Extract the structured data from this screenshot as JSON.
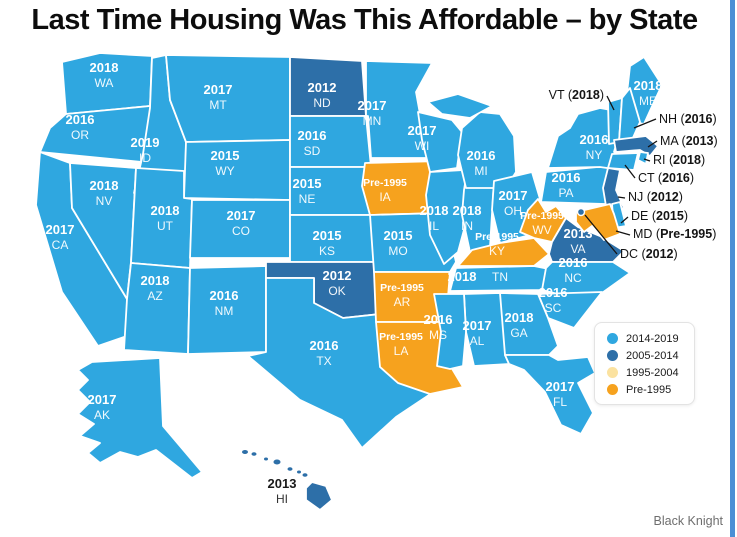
{
  "title": "Last Time Housing Was This Affordable – by State",
  "credit": "Black Knight",
  "colors": {
    "light": "#2fa7e0",
    "dark": "#2d6fa8",
    "pale": "#fbe2a0",
    "orange": "#f6a21e"
  },
  "legend": {
    "items": [
      {
        "label": "2014-2019",
        "color_key": "light"
      },
      {
        "label": "2005-2014",
        "color_key": "dark"
      },
      {
        "label": "1995-2004",
        "color_key": "pale"
      },
      {
        "label": "Pre-1995",
        "color_key": "orange"
      }
    ]
  },
  "states": [
    {
      "abbr": "WA",
      "year": "2018",
      "category": "light",
      "label": "stacked"
    },
    {
      "abbr": "OR",
      "year": "2016",
      "category": "light",
      "label": "stacked"
    },
    {
      "abbr": "CA",
      "year": "2017",
      "category": "light",
      "label": "stacked"
    },
    {
      "abbr": "NV",
      "year": "2018",
      "category": "light",
      "label": "stacked"
    },
    {
      "abbr": "ID",
      "year": "2019",
      "category": "light",
      "label": "stacked"
    },
    {
      "abbr": "MT",
      "year": "2017",
      "category": "light",
      "label": "stacked"
    },
    {
      "abbr": "WY",
      "year": "2015",
      "category": "light",
      "label": "stacked"
    },
    {
      "abbr": "UT",
      "year": "2018",
      "category": "light",
      "label": "stacked"
    },
    {
      "abbr": "CO",
      "year": "2017",
      "category": "light",
      "label": "stacked"
    },
    {
      "abbr": "AZ",
      "year": "2018",
      "category": "light",
      "label": "stacked"
    },
    {
      "abbr": "NM",
      "year": "2016",
      "category": "light",
      "label": "stacked"
    },
    {
      "abbr": "ND",
      "year": "2012",
      "category": "dark",
      "label": "stacked"
    },
    {
      "abbr": "SD",
      "year": "2016",
      "category": "light",
      "label": "stacked"
    },
    {
      "abbr": "NE",
      "year": "2015",
      "category": "light",
      "label": "stacked"
    },
    {
      "abbr": "KS",
      "year": "2015",
      "category": "light",
      "label": "stacked"
    },
    {
      "abbr": "OK",
      "year": "2012",
      "category": "dark",
      "label": "stacked"
    },
    {
      "abbr": "TX",
      "year": "2016",
      "category": "light",
      "label": "stacked"
    },
    {
      "abbr": "MN",
      "year": "2017",
      "category": "light",
      "label": "stacked"
    },
    {
      "abbr": "IA",
      "year": "Pre-1995",
      "category": "orange",
      "label": "stacked"
    },
    {
      "abbr": "MO",
      "year": "2015",
      "category": "light",
      "label": "stacked"
    },
    {
      "abbr": "AR",
      "year": "Pre-1995",
      "category": "orange",
      "label": "stacked"
    },
    {
      "abbr": "LA",
      "year": "Pre-1995",
      "category": "orange",
      "label": "stacked"
    },
    {
      "abbr": "WI",
      "year": "2017",
      "category": "light",
      "label": "stacked"
    },
    {
      "abbr": "IL",
      "year": "2018",
      "category": "light",
      "label": "stacked"
    },
    {
      "abbr": "IN",
      "year": "2018",
      "category": "light",
      "label": "stacked"
    },
    {
      "abbr": "MI",
      "year": "2016",
      "category": "light",
      "label": "stacked"
    },
    {
      "abbr": "OH",
      "year": "2017",
      "category": "light",
      "label": "stacked"
    },
    {
      "abbr": "KY",
      "year": "Pre-1995",
      "category": "orange",
      "label": "stacked"
    },
    {
      "abbr": "TN",
      "year": "2018",
      "category": "light",
      "label": "inline"
    },
    {
      "abbr": "WV",
      "year": "Pre-1995",
      "category": "orange",
      "label": "stacked"
    },
    {
      "abbr": "VA",
      "year": "2013",
      "category": "dark",
      "label": "stacked"
    },
    {
      "abbr": "NC",
      "year": "2016",
      "category": "light",
      "label": "stacked"
    },
    {
      "abbr": "SC",
      "year": "2016",
      "category": "light",
      "label": "stacked"
    },
    {
      "abbr": "GA",
      "year": "2018",
      "category": "light",
      "label": "stacked"
    },
    {
      "abbr": "AL",
      "year": "2017",
      "category": "light",
      "label": "stacked"
    },
    {
      "abbr": "MS",
      "year": "2016",
      "category": "light",
      "label": "stacked"
    },
    {
      "abbr": "FL",
      "year": "2017",
      "category": "light",
      "label": "stacked"
    },
    {
      "abbr": "PA",
      "year": "2016",
      "category": "light",
      "label": "stacked"
    },
    {
      "abbr": "NY",
      "year": "2016",
      "category": "light",
      "label": "stacked"
    },
    {
      "abbr": "ME",
      "year": "2018",
      "category": "light",
      "label": "stacked"
    },
    {
      "abbr": "VT",
      "year": "2018",
      "category": "light",
      "label": "none"
    },
    {
      "abbr": "NH",
      "year": "2016",
      "category": "light",
      "label": "none"
    },
    {
      "abbr": "MA",
      "year": "2013",
      "category": "dark",
      "label": "none"
    },
    {
      "abbr": "RI",
      "year": "2018",
      "category": "light",
      "label": "none"
    },
    {
      "abbr": "CT",
      "year": "2016",
      "category": "light",
      "label": "none"
    },
    {
      "abbr": "NJ",
      "year": "2012",
      "category": "dark",
      "label": "none"
    },
    {
      "abbr": "DE",
      "year": "2015",
      "category": "light",
      "label": "none"
    },
    {
      "abbr": "MD",
      "year": "Pre-1995",
      "category": "orange",
      "label": "none"
    },
    {
      "abbr": "AK",
      "year": "2017",
      "category": "light",
      "label": "stacked"
    },
    {
      "abbr": "HI",
      "year": "2013",
      "category": "dark",
      "label": "outside"
    }
  ],
  "callouts": [
    {
      "abbr": "VT",
      "year": "2018"
    },
    {
      "abbr": "NH",
      "year": "2016"
    },
    {
      "abbr": "MA",
      "year": "2013"
    },
    {
      "abbr": "RI",
      "year": "2018"
    },
    {
      "abbr": "CT",
      "year": "2016"
    },
    {
      "abbr": "NJ",
      "year": "2012"
    },
    {
      "abbr": "DE",
      "year": "2015"
    },
    {
      "abbr": "MD",
      "year": "Pre-1995"
    },
    {
      "abbr": "DC",
      "year": "2012"
    }
  ],
  "dc": {
    "category": "dark"
  }
}
